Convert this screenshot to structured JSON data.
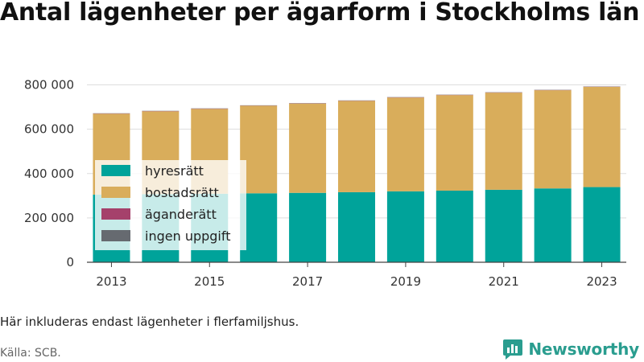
{
  "title": "Antal lägenheter per ägarform i Stockholms län",
  "note": "Här inkluderas endast lägenheter i flerfamiljshus.",
  "source": "Källa: SCB.",
  "brand": "Newsworthy",
  "colors": {
    "hyresratt": "#00a39a",
    "bostadsratt": "#d9ad5b",
    "aganderatt": "#a5416b",
    "ingen_uppgift": "#666a70",
    "grid": "#dddddd",
    "axis": "#444444",
    "brand": "#2a9d8f"
  },
  "chart_data": {
    "type": "bar",
    "stacked": true,
    "categories": [
      "2013",
      "2014",
      "2015",
      "2016",
      "2017",
      "2018",
      "2019",
      "2020",
      "2021",
      "2022",
      "2023"
    ],
    "x_tick_labels": [
      "2013",
      "2015",
      "2017",
      "2019",
      "2021",
      "2023"
    ],
    "series": [
      {
        "name": "hyresrätt",
        "color": "#00a39a",
        "values": [
          305000,
          307000,
          309000,
          311000,
          313000,
          316000,
          320000,
          323000,
          327000,
          333000,
          339000
        ]
      },
      {
        "name": "bostadsrätt",
        "color": "#d9ad5b",
        "values": [
          365000,
          374000,
          383000,
          395000,
          403000,
          412000,
          423000,
          431000,
          438000,
          443000,
          452000
        ]
      },
      {
        "name": "äganderätt",
        "color": "#a5416b",
        "values": [
          1000,
          1000,
          1000,
          1000,
          1000,
          1000,
          1000,
          1000,
          1000,
          1000,
          1000
        ]
      },
      {
        "name": "ingen uppgift",
        "color": "#666a70",
        "values": [
          1000,
          1000,
          1000,
          1000,
          1000,
          1000,
          1000,
          1000,
          1000,
          1000,
          1000
        ]
      }
    ],
    "y_ticks": [
      0,
      200000,
      400000,
      600000,
      800000
    ],
    "y_tick_labels": [
      "0",
      "200 000",
      "400 000",
      "600 000",
      "800 000"
    ],
    "ylim": [
      0,
      820000
    ],
    "grid": true,
    "legend": "left-overlay"
  }
}
